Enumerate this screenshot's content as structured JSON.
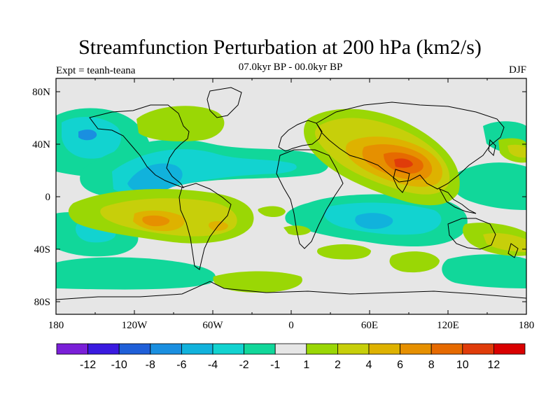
{
  "title": "Streamfunction Perturbation at 200 hPa (km2/s)",
  "subtitle": "07.0kyr BP - 00.0kyr BP",
  "experiment": "Expt = teanh-teana",
  "season": "DJF",
  "map": {
    "projection": "cylindrical equidistant",
    "lon_range": [
      -180,
      180
    ],
    "lat_range": [
      -90,
      90
    ],
    "lat_ticks": [
      "80N",
      "40N",
      "0",
      "40S",
      "80S"
    ],
    "lon_ticks": [
      "180",
      "120W",
      "60W",
      "0",
      "60E",
      "120E",
      "180"
    ],
    "background_color": "#e6e6e6"
  },
  "colorbar": {
    "labels": [
      "-12",
      "-10",
      "-8",
      "-6",
      "-4",
      "-2",
      "-1",
      "1",
      "2",
      "4",
      "6",
      "8",
      "10",
      "12"
    ],
    "colors": [
      "#7a1fd8",
      "#3a1ae0",
      "#1f5fd8",
      "#1a8fe0",
      "#11b2dc",
      "#12d3d0",
      "#11d79a",
      "#e6e6e6",
      "#9ad705",
      "#c7cf0a",
      "#deb200",
      "#e69000",
      "#e66a00",
      "#e03c0a",
      "#d90000"
    ]
  }
}
